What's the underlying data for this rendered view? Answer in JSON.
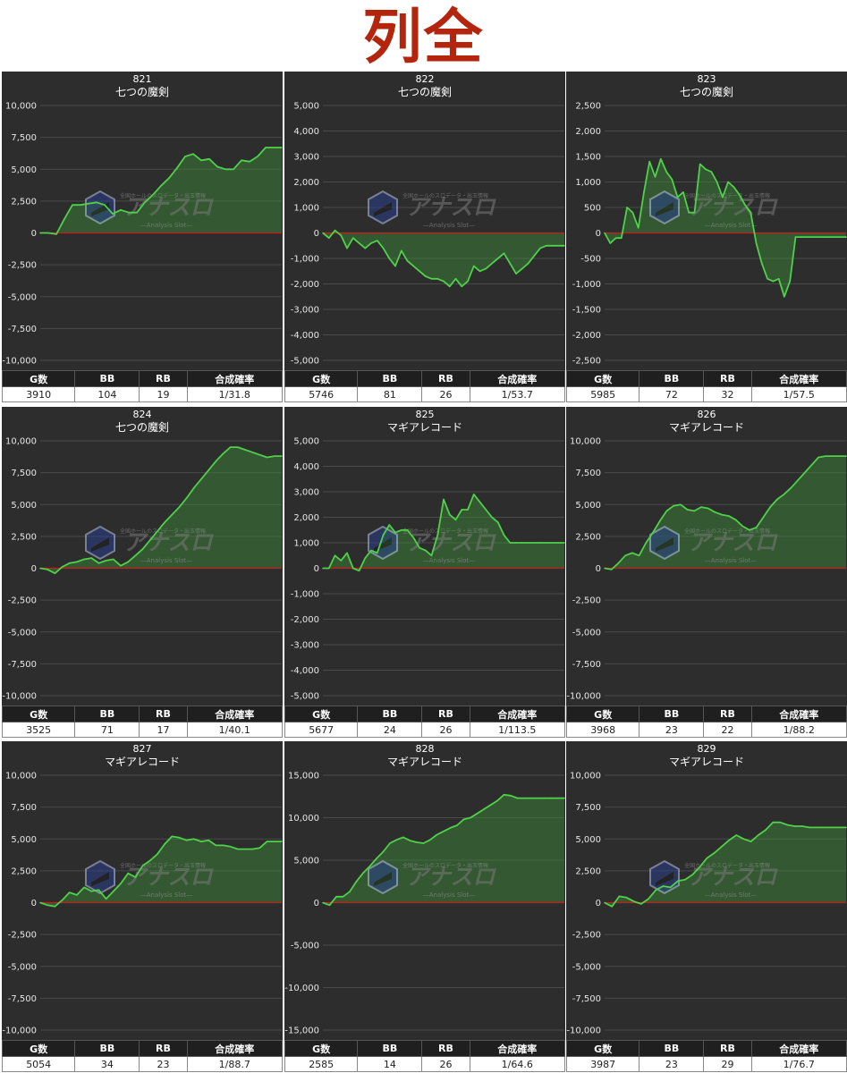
{
  "headline": "列全",
  "table_headers": [
    "G数",
    "BB",
    "RB",
    "合成確率"
  ],
  "watermark": {
    "brand": "アナスロ",
    "sub": "—Analysis Slot—",
    "top": "全国ホールのスロデータ・出玉情報"
  },
  "colors": {
    "background": "#2d2d2d",
    "line": "#4fd14a",
    "fill": "#3f8f3a",
    "zero_line": "#c81e1e",
    "grid": "#4a4a4a",
    "headline": "#b3260d"
  },
  "chart_data": [
    {
      "type": "area",
      "number": "821",
      "model": "七つの魔剣",
      "ylim": [
        -10000,
        10000
      ],
      "yticks": [
        10000,
        7500,
        5000,
        2500,
        0,
        -2500,
        -5000,
        -7500,
        -10000
      ],
      "x": [
        0,
        1,
        2,
        3,
        4,
        5,
        6,
        7,
        8,
        9,
        10,
        11,
        12,
        13,
        14,
        15,
        16,
        17,
        18,
        19,
        20,
        21,
        22,
        23,
        24,
        25,
        26,
        27,
        28,
        29,
        30
      ],
      "values": [
        0,
        0,
        -100,
        1100,
        2200,
        2200,
        2300,
        2400,
        2200,
        1500,
        1800,
        1600,
        1600,
        2400,
        3000,
        3700,
        4300,
        5100,
        6000,
        6200,
        5700,
        5800,
        5200,
        5000,
        5000,
        5700,
        5600,
        6000,
        6700,
        6700,
        6700
      ],
      "stats": {
        "games": "3910",
        "bb": "104",
        "rb": "19",
        "prob": "1/31.8"
      }
    },
    {
      "type": "area",
      "number": "822",
      "model": "七つの魔剣",
      "ylim": [
        -5000,
        5000
      ],
      "yticks": [
        5000,
        4000,
        3000,
        2000,
        1000,
        0,
        -1000,
        -2000,
        -3000,
        -4000,
        -5000
      ],
      "x": [
        0,
        1,
        2,
        3,
        4,
        5,
        6,
        7,
        8,
        9,
        10,
        11,
        12,
        13,
        14,
        15,
        16,
        17,
        18,
        19,
        20,
        21,
        22,
        23,
        24,
        25,
        26,
        27,
        28,
        29,
        30,
        31,
        32,
        33,
        34,
        35,
        36,
        37,
        38,
        39,
        40
      ],
      "values": [
        0,
        -200,
        100,
        -100,
        -600,
        -200,
        -400,
        -600,
        -400,
        -300,
        -600,
        -1000,
        -1300,
        -700,
        -1100,
        -1300,
        -1500,
        -1700,
        -1800,
        -1800,
        -1900,
        -2100,
        -1800,
        -2100,
        -1900,
        -1300,
        -1500,
        -1400,
        -1200,
        -1000,
        -800,
        -1200,
        -1600,
        -1400,
        -1200,
        -900,
        -600,
        -500,
        -500,
        -500,
        -500
      ],
      "stats": {
        "games": "5746",
        "bb": "81",
        "rb": "26",
        "prob": "1/53.7"
      }
    },
    {
      "type": "area",
      "number": "823",
      "model": "七つの魔剣",
      "ylim": [
        -2500,
        2500
      ],
      "yticks": [
        2500,
        2000,
        1500,
        1000,
        500,
        0,
        -500,
        -1000,
        -1500,
        -2000,
        -2500
      ],
      "x": [
        0,
        1,
        2,
        3,
        4,
        5,
        6,
        7,
        8,
        9,
        10,
        11,
        12,
        13,
        14,
        15,
        16,
        17,
        18,
        19,
        20,
        21,
        22,
        23,
        24,
        25,
        26,
        27,
        28,
        29,
        30,
        31,
        32,
        33,
        34,
        35,
        36,
        37,
        38,
        39,
        40,
        41,
        42,
        43
      ],
      "values": [
        0,
        -200,
        -100,
        -100,
        500,
        400,
        100,
        800,
        1400,
        1100,
        1450,
        1200,
        1050,
        700,
        800,
        400,
        400,
        1350,
        1250,
        1200,
        1000,
        700,
        1000,
        900,
        750,
        550,
        400,
        -200,
        -600,
        -900,
        -950,
        -900,
        -1250,
        -950,
        -80,
        -80,
        -80,
        -80,
        -80,
        -80,
        -80,
        -80,
        -80,
        -80
      ],
      "stats": {
        "games": "5985",
        "bb": "72",
        "rb": "32",
        "prob": "1/57.5"
      }
    },
    {
      "type": "area",
      "number": "824",
      "model": "七つの魔剣",
      "ylim": [
        -10000,
        10000
      ],
      "yticks": [
        10000,
        7500,
        5000,
        2500,
        0,
        -2500,
        -5000,
        -7500,
        -10000
      ],
      "x": [
        0,
        1,
        2,
        3,
        4,
        5,
        6,
        7,
        8,
        9,
        10,
        11,
        12,
        13,
        14,
        15,
        16,
        17,
        18,
        19,
        20,
        21,
        22,
        23,
        24,
        25,
        26,
        27,
        28,
        29,
        30,
        31,
        32,
        33
      ],
      "values": [
        0,
        -100,
        -400,
        100,
        400,
        500,
        700,
        800,
        400,
        600,
        700,
        200,
        500,
        1000,
        1500,
        2200,
        2900,
        3600,
        4200,
        4800,
        5500,
        6300,
        7000,
        7700,
        8400,
        9000,
        9500,
        9500,
        9300,
        9100,
        8900,
        8700,
        8800,
        8800
      ],
      "stats": {
        "games": "3525",
        "bb": "71",
        "rb": "17",
        "prob": "1/40.1"
      }
    },
    {
      "type": "area",
      "number": "825",
      "model": "マギアレコード",
      "ylim": [
        -5000,
        5000
      ],
      "yticks": [
        5000,
        4000,
        3000,
        2000,
        1000,
        0,
        -1000,
        -2000,
        -3000,
        -4000,
        -5000
      ],
      "x": [
        0,
        1,
        2,
        3,
        4,
        5,
        6,
        7,
        8,
        9,
        10,
        11,
        12,
        13,
        14,
        15,
        16,
        17,
        18,
        19,
        20,
        21,
        22,
        23,
        24,
        25,
        26,
        27,
        28,
        29,
        30,
        31,
        32,
        33,
        34,
        35,
        36,
        37,
        38,
        39,
        40
      ],
      "values": [
        0,
        0,
        500,
        300,
        600,
        0,
        -100,
        400,
        700,
        600,
        1300,
        1700,
        1400,
        1500,
        1500,
        1200,
        800,
        700,
        500,
        1300,
        2700,
        2100,
        1900,
        2300,
        2300,
        2900,
        2600,
        2300,
        2000,
        1800,
        1300,
        1000,
        1000,
        1000,
        1000,
        1000,
        1000,
        1000,
        1000,
        1000,
        1000
      ],
      "stats": {
        "games": "5677",
        "bb": "24",
        "rb": "26",
        "prob": "1/113.5"
      }
    },
    {
      "type": "area",
      "number": "826",
      "model": "マギアレコード",
      "ylim": [
        -10000,
        10000
      ],
      "yticks": [
        10000,
        7500,
        5000,
        2500,
        0,
        -2500,
        -5000,
        -7500,
        -10000
      ],
      "x": [
        0,
        1,
        2,
        3,
        4,
        5,
        6,
        7,
        8,
        9,
        10,
        11,
        12,
        13,
        14,
        15,
        16,
        17,
        18,
        19,
        20,
        21,
        22,
        23,
        24,
        25,
        26,
        27,
        28,
        29,
        30,
        31,
        32,
        33,
        34,
        35
      ],
      "values": [
        0,
        -100,
        400,
        1000,
        1200,
        1000,
        2000,
        2800,
        3700,
        4500,
        4900,
        5000,
        4600,
        4500,
        4800,
        4700,
        4400,
        4200,
        4100,
        3800,
        3300,
        3000,
        3200,
        4000,
        4800,
        5400,
        5800,
        6300,
        6900,
        7500,
        8100,
        8700,
        8800,
        8800,
        8800,
        8800
      ],
      "stats": {
        "games": "3968",
        "bb": "23",
        "rb": "22",
        "prob": "1/88.2"
      }
    },
    {
      "type": "area",
      "number": "827",
      "model": "マギアレコード",
      "ylim": [
        -10000,
        10000
      ],
      "yticks": [
        10000,
        7500,
        5000,
        2500,
        0,
        -2500,
        -5000,
        -7500,
        -10000
      ],
      "x": [
        0,
        1,
        2,
        3,
        4,
        5,
        6,
        7,
        8,
        9,
        10,
        11,
        12,
        13,
        14,
        15,
        16,
        17,
        18,
        19,
        20,
        21,
        22,
        23,
        24,
        25,
        26,
        27,
        28,
        29,
        30,
        31,
        32,
        33
      ],
      "values": [
        0,
        -200,
        -300,
        200,
        800,
        600,
        1200,
        900,
        1000,
        300,
        900,
        1500,
        2300,
        2000,
        2900,
        3300,
        3800,
        4600,
        5200,
        5100,
        4900,
        5000,
        4800,
        4900,
        4500,
        4500,
        4400,
        4200,
        4200,
        4200,
        4300,
        4800,
        4800,
        4800
      ],
      "stats": {
        "games": "5054",
        "bb": "34",
        "rb": "23",
        "prob": "1/88.7"
      }
    },
    {
      "type": "area",
      "number": "828",
      "model": "マギアレコード",
      "ylim": [
        -15000,
        15000
      ],
      "yticks": [
        15000,
        10000,
        5000,
        0,
        -5000,
        -10000,
        -15000
      ],
      "x": [
        0,
        1,
        2,
        3,
        4,
        5,
        6,
        7,
        8,
        9,
        10,
        11,
        12,
        13,
        14,
        15,
        16,
        17,
        18,
        19,
        20,
        21,
        22,
        23,
        24,
        25,
        26,
        27,
        28,
        29,
        30,
        31,
        32,
        33,
        34,
        35,
        36
      ],
      "values": [
        0,
        -300,
        700,
        700,
        1300,
        2500,
        3500,
        4300,
        5200,
        6000,
        7000,
        7400,
        7700,
        7300,
        7100,
        7000,
        7400,
        8000,
        8400,
        8800,
        9100,
        9800,
        10000,
        10500,
        11000,
        11500,
        12000,
        12700,
        12600,
        12300,
        12300,
        12300,
        12300,
        12300,
        12300,
        12300,
        12300
      ],
      "stats": {
        "games": "2585",
        "bb": "14",
        "rb": "26",
        "prob": "1/64.6"
      }
    },
    {
      "type": "area",
      "number": "829",
      "model": "マギアレコード",
      "ylim": [
        -10000,
        10000
      ],
      "yticks": [
        10000,
        7500,
        5000,
        2500,
        0,
        -2500,
        -5000,
        -7500,
        -10000
      ],
      "x": [
        0,
        1,
        2,
        3,
        4,
        5,
        6,
        7,
        8,
        9,
        10,
        11,
        12,
        13,
        14,
        15,
        16,
        17,
        18,
        19,
        20,
        21,
        22,
        23,
        24,
        25,
        26,
        27,
        28,
        29,
        30,
        31,
        32,
        33
      ],
      "values": [
        0,
        -300,
        500,
        400,
        100,
        -100,
        300,
        1000,
        1300,
        1200,
        1700,
        1800,
        2200,
        2800,
        3500,
        3900,
        4400,
        4900,
        5300,
        5000,
        4800,
        5300,
        5700,
        6300,
        6300,
        6100,
        6000,
        6000,
        5900,
        5900,
        5900,
        5900,
        5900,
        5900
      ],
      "stats": {
        "games": "3987",
        "bb": "23",
        "rb": "29",
        "prob": "1/76.7"
      }
    }
  ]
}
